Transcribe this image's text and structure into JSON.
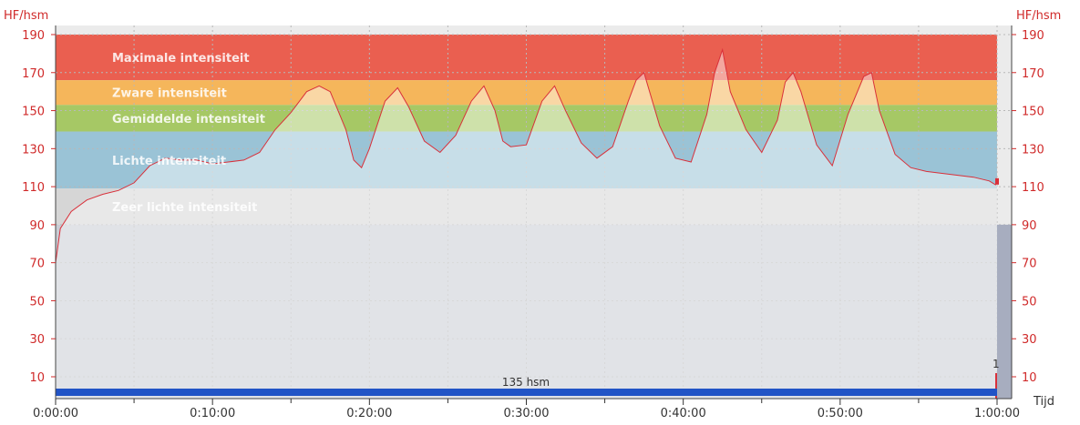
{
  "chart_data": {
    "type": "area",
    "y_unit_left": "HF/hsm",
    "y_unit_right": "HF/hsm",
    "xlabel": "Tijd",
    "ylim": [
      0,
      190
    ],
    "y_ticks": [
      190,
      170,
      150,
      130,
      110,
      90,
      70,
      50,
      30,
      10
    ],
    "x_ticks": [
      "0:00:00",
      "0:10:00",
      "0:20:00",
      "0:30:00",
      "0:40:00",
      "0:50:00",
      "1:00:00"
    ],
    "x_range_minutes": [
      0,
      60
    ],
    "zones": [
      {
        "label": "Maximale intensiteit",
        "from": 166,
        "to": 190,
        "color": "#ea5f50"
      },
      {
        "label": "Zware intensiteit",
        "from": 153,
        "to": 166,
        "color": "#f5b65b"
      },
      {
        "label": "Gemiddelde intensiteit",
        "from": 139,
        "to": 153,
        "color": "#a6c865"
      },
      {
        "label": "Lichte intensiteit",
        "from": 109,
        "to": 139,
        "color": "#9ac3d6"
      },
      {
        "label": "Zeer lichte intensiteit",
        "from": 90,
        "to": 109,
        "color": "#d6d6d6"
      }
    ],
    "average": {
      "value": 135,
      "label": "135 hsm",
      "color": "#2154c6"
    },
    "end_marker": "1",
    "series": [
      {
        "color": "#d9303a",
        "x": [
          0,
          0.3,
          1,
          2,
          3,
          4,
          5,
          6,
          7,
          8,
          9,
          10,
          11,
          12,
          13,
          14,
          15,
          16,
          16.8,
          17.5,
          18.5,
          19,
          19.5,
          20,
          21,
          21.8,
          22.5,
          23.5,
          24.5,
          25.5,
          26.5,
          27.3,
          28,
          28.5,
          29,
          30,
          31,
          31.8,
          32.5,
          33.5,
          34.5,
          35.5,
          36.5,
          37,
          37.5,
          38.5,
          39.5,
          40.5,
          41.5,
          42,
          42.5,
          43,
          44,
          45,
          46,
          46.5,
          47,
          47.5,
          48.5,
          49.5,
          50.5,
          51.5,
          52,
          52.5,
          53.5,
          54.5,
          55.5,
          56.5,
          57.5,
          58.5,
          59.5,
          59.9,
          60
        ],
        "y": [
          70,
          88,
          97,
          103,
          106,
          108,
          112,
          121,
          125,
          124,
          124,
          122,
          123,
          124,
          128,
          140,
          149,
          160,
          163,
          160,
          140,
          124,
          120,
          130,
          155,
          162,
          152,
          134,
          128,
          137,
          155,
          163,
          150,
          134,
          131,
          132,
          155,
          163,
          150,
          133,
          125,
          131,
          155,
          166,
          170,
          142,
          125,
          123,
          148,
          170,
          182,
          160,
          140,
          128,
          145,
          165,
          170,
          160,
          132,
          121,
          148,
          168,
          170,
          150,
          127,
          120,
          118,
          117,
          116,
          115,
          113,
          111,
          113
        ]
      }
    ]
  }
}
